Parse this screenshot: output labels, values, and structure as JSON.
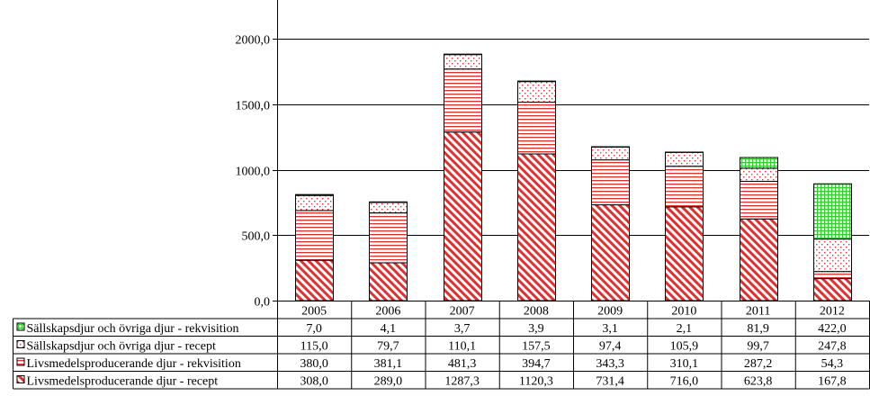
{
  "chart_data": {
    "type": "bar",
    "stacked": true,
    "title": "",
    "xlabel": "",
    "ylabel": "",
    "categories": [
      "2005",
      "2006",
      "2007",
      "2008",
      "2009",
      "2010",
      "2011",
      "2012"
    ],
    "ylim": [
      0,
      2000
    ],
    "yticks": [
      0,
      500,
      1000,
      1500,
      2000
    ],
    "ytick_labels": [
      "0,0",
      "500,0",
      "1000,0",
      "1500,0",
      "2000,0"
    ],
    "grid": true,
    "legend": "data-table-left",
    "series": [
      {
        "name": "Livsmedelsproducerande djur - recept",
        "values": [
          308.0,
          289.0,
          1287.3,
          1120.3,
          731.4,
          716.0,
          623.8,
          167.8
        ],
        "labels": [
          "308,0",
          "289,0",
          "1287,3",
          "1120,3",
          "731,4",
          "716,0",
          "623,8",
          "167,8"
        ],
        "color": "#e03030",
        "pattern": "diagonal-stripes"
      },
      {
        "name": "Livsmedelsproducerande djur - rekvisition",
        "values": [
          380.0,
          381.1,
          481.3,
          394.7,
          343.3,
          310.1,
          287.2,
          54.3
        ],
        "labels": [
          "380,0",
          "381,1",
          "481,3",
          "394,7",
          "343,3",
          "310,1",
          "287,2",
          "54,3"
        ],
        "color": "#e03030",
        "pattern": "horizontal-lines"
      },
      {
        "name": "Sällskapsdjur och övriga djur - recept",
        "values": [
          115.0,
          79.7,
          110.1,
          157.5,
          97.4,
          105.9,
          99.7,
          247.8
        ],
        "labels": [
          "115,0",
          "79,7",
          "110,1",
          "157,5",
          "97,4",
          "105,9",
          "99,7",
          "247,8"
        ],
        "color": "#e03030",
        "pattern": "dots"
      },
      {
        "name": "Sällskapsdjur och övriga djur - rekvisition",
        "values": [
          7.0,
          4.1,
          3.7,
          3.9,
          3.1,
          2.1,
          81.9,
          422.0
        ],
        "labels": [
          "7,0",
          "4,1",
          "3,7",
          "3,9",
          "3,1",
          "2,1",
          "81,9",
          "422,0"
        ],
        "color": "#33cc33",
        "pattern": "grid"
      }
    ],
    "table_row_order": [
      3,
      2,
      1,
      0
    ]
  }
}
